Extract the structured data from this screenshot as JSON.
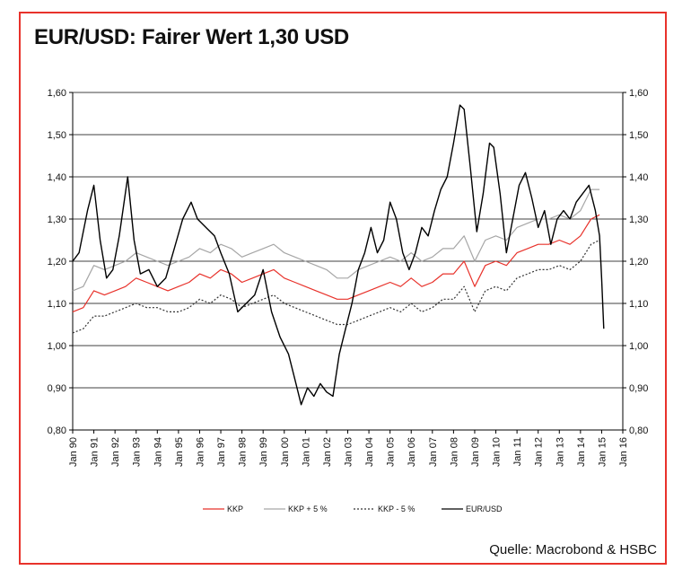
{
  "title": "EUR/USD: Fairer Wert 1,30 USD",
  "source": "Quelle: Macrobond & HSBC",
  "chart_data": {
    "type": "line",
    "ylim": [
      0.8,
      1.6
    ],
    "y_ticks": [
      "0,80",
      "0,90",
      "1,00",
      "1,10",
      "1,20",
      "1,30",
      "1,40",
      "1,50",
      "1,60"
    ],
    "y_tick_values": [
      0.8,
      0.9,
      1.0,
      1.1,
      1.2,
      1.3,
      1.4,
      1.5,
      1.6
    ],
    "xlim": [
      1990,
      2016
    ],
    "x_ticks": [
      "Jan 90",
      "Jan 91",
      "Jan 92",
      "Jan 93",
      "Jan 94",
      "Jan 95",
      "Jan 96",
      "Jan 97",
      "Jan 98",
      "Jan 99",
      "Jan 00",
      "Jan 01",
      "Jan 02",
      "Jan 03",
      "Jan 04",
      "Jan 05",
      "Jan 06",
      "Jan 07",
      "Jan 08",
      "Jan 09",
      "Jan 10",
      "Jan 11",
      "Jan 12",
      "Jan 13",
      "Jan 14",
      "Jan 15",
      "Jan 16"
    ],
    "x_tick_values": [
      1990,
      1991,
      1992,
      1993,
      1994,
      1995,
      1996,
      1997,
      1998,
      1999,
      2000,
      2001,
      2002,
      2003,
      2004,
      2005,
      2006,
      2007,
      2008,
      2009,
      2010,
      2011,
      2012,
      2013,
      2014,
      2015,
      2016
    ],
    "grid": true,
    "legend_position": "bottom",
    "series": [
      {
        "name": "KKP",
        "color": "#e8322b",
        "dash": "",
        "x": [
          1990,
          1990.5,
          1991,
          1991.5,
          1992,
          1992.5,
          1993,
          1993.5,
          1994,
          1994.5,
          1995,
          1995.5,
          1996,
          1996.5,
          1997,
          1997.5,
          1998,
          1998.5,
          1999,
          1999.5,
          2000,
          2000.5,
          2001,
          2001.5,
          2002,
          2002.5,
          2003,
          2003.5,
          2004,
          2004.5,
          2005,
          2005.5,
          2006,
          2006.5,
          2007,
          2007.5,
          2008,
          2008.5,
          2009,
          2009.5,
          2010,
          2010.5,
          2011,
          2011.5,
          2012,
          2012.5,
          2013,
          2013.5,
          2014,
          2014.5,
          2014.9
        ],
        "y": [
          1.08,
          1.09,
          1.13,
          1.12,
          1.13,
          1.14,
          1.16,
          1.15,
          1.14,
          1.13,
          1.14,
          1.15,
          1.17,
          1.16,
          1.18,
          1.17,
          1.15,
          1.16,
          1.17,
          1.18,
          1.16,
          1.15,
          1.14,
          1.13,
          1.12,
          1.11,
          1.11,
          1.12,
          1.13,
          1.14,
          1.15,
          1.14,
          1.16,
          1.14,
          1.15,
          1.17,
          1.17,
          1.2,
          1.14,
          1.19,
          1.2,
          1.19,
          1.22,
          1.23,
          1.24,
          1.24,
          1.25,
          1.24,
          1.26,
          1.3,
          1.31
        ]
      },
      {
        "name": "KKP + 5 %",
        "color": "#a6a6a6",
        "dash": "",
        "x": [
          1990,
          1990.5,
          1991,
          1991.5,
          1992,
          1992.5,
          1993,
          1993.5,
          1994,
          1994.5,
          1995,
          1995.5,
          1996,
          1996.5,
          1997,
          1997.5,
          1998,
          1998.5,
          1999,
          1999.5,
          2000,
          2000.5,
          2001,
          2001.5,
          2002,
          2002.5,
          2003,
          2003.5,
          2004,
          2004.5,
          2005,
          2005.5,
          2006,
          2006.5,
          2007,
          2007.5,
          2008,
          2008.5,
          2009,
          2009.5,
          2010,
          2010.5,
          2011,
          2011.5,
          2012,
          2012.5,
          2013,
          2013.5,
          2014,
          2014.5,
          2014.9
        ],
        "y": [
          1.13,
          1.14,
          1.19,
          1.18,
          1.19,
          1.2,
          1.22,
          1.21,
          1.2,
          1.19,
          1.2,
          1.21,
          1.23,
          1.22,
          1.24,
          1.23,
          1.21,
          1.22,
          1.23,
          1.24,
          1.22,
          1.21,
          1.2,
          1.19,
          1.18,
          1.16,
          1.16,
          1.18,
          1.19,
          1.2,
          1.21,
          1.2,
          1.22,
          1.2,
          1.21,
          1.23,
          1.23,
          1.26,
          1.2,
          1.25,
          1.26,
          1.25,
          1.28,
          1.29,
          1.3,
          1.3,
          1.31,
          1.3,
          1.32,
          1.37,
          1.37
        ]
      },
      {
        "name": "KKP - 5 %",
        "color": "#333333",
        "dash": "2,2",
        "x": [
          1990,
          1990.5,
          1991,
          1991.5,
          1992,
          1992.5,
          1993,
          1993.5,
          1994,
          1994.5,
          1995,
          1995.5,
          1996,
          1996.5,
          1997,
          1997.5,
          1998,
          1998.5,
          1999,
          1999.5,
          2000,
          2000.5,
          2001,
          2001.5,
          2002,
          2002.5,
          2003,
          2003.5,
          2004,
          2004.5,
          2005,
          2005.5,
          2006,
          2006.5,
          2007,
          2007.5,
          2008,
          2008.5,
          2009,
          2009.5,
          2010,
          2010.5,
          2011,
          2011.5,
          2012,
          2012.5,
          2013,
          2013.5,
          2014,
          2014.5,
          2014.9
        ],
        "y": [
          1.03,
          1.04,
          1.07,
          1.07,
          1.08,
          1.09,
          1.1,
          1.09,
          1.09,
          1.08,
          1.08,
          1.09,
          1.11,
          1.1,
          1.12,
          1.11,
          1.09,
          1.1,
          1.11,
          1.12,
          1.1,
          1.09,
          1.08,
          1.07,
          1.06,
          1.05,
          1.05,
          1.06,
          1.07,
          1.08,
          1.09,
          1.08,
          1.1,
          1.08,
          1.09,
          1.11,
          1.11,
          1.14,
          1.08,
          1.13,
          1.14,
          1.13,
          1.16,
          1.17,
          1.18,
          1.18,
          1.19,
          1.18,
          1.2,
          1.24,
          1.25
        ]
      },
      {
        "name": "EUR/USD",
        "color": "#000000",
        "dash": "",
        "x": [
          1990,
          1990.3,
          1990.7,
          1991.0,
          1991.3,
          1991.6,
          1991.9,
          1992.2,
          1992.6,
          1992.9,
          1993.2,
          1993.6,
          1994.0,
          1994.4,
          1994.8,
          1995.2,
          1995.6,
          1995.9,
          1996.3,
          1996.7,
          1997.0,
          1997.4,
          1997.8,
          1998.2,
          1998.6,
          1999.0,
          1999.4,
          1999.8,
          2000.2,
          2000.5,
          2000.8,
          2001.1,
          2001.4,
          2001.7,
          2002.0,
          2002.3,
          2002.6,
          2002.9,
          2003.2,
          2003.5,
          2003.8,
          2004.1,
          2004.4,
          2004.7,
          2005.0,
          2005.3,
          2005.6,
          2005.9,
          2006.2,
          2006.5,
          2006.8,
          2007.1,
          2007.4,
          2007.7,
          2008.0,
          2008.3,
          2008.5,
          2008.8,
          2009.1,
          2009.4,
          2009.7,
          2009.9,
          2010.2,
          2010.5,
          2010.8,
          2011.1,
          2011.4,
          2011.7,
          2012.0,
          2012.3,
          2012.6,
          2012.9,
          2013.2,
          2013.5,
          2013.8,
          2014.1,
          2014.4,
          2014.7,
          2014.9,
          2015.0,
          2015.1
        ],
        "y": [
          1.2,
          1.22,
          1.32,
          1.38,
          1.25,
          1.16,
          1.18,
          1.26,
          1.4,
          1.25,
          1.17,
          1.18,
          1.14,
          1.16,
          1.23,
          1.3,
          1.34,
          1.3,
          1.28,
          1.26,
          1.22,
          1.17,
          1.08,
          1.1,
          1.12,
          1.18,
          1.08,
          1.02,
          0.98,
          0.92,
          0.86,
          0.9,
          0.88,
          0.91,
          0.89,
          0.88,
          0.98,
          1.04,
          1.1,
          1.18,
          1.22,
          1.28,
          1.22,
          1.25,
          1.34,
          1.3,
          1.22,
          1.18,
          1.22,
          1.28,
          1.26,
          1.32,
          1.37,
          1.4,
          1.48,
          1.57,
          1.56,
          1.42,
          1.27,
          1.36,
          1.48,
          1.47,
          1.36,
          1.22,
          1.3,
          1.38,
          1.41,
          1.35,
          1.28,
          1.32,
          1.24,
          1.3,
          1.32,
          1.3,
          1.34,
          1.36,
          1.38,
          1.32,
          1.26,
          1.16,
          1.04
        ]
      }
    ]
  }
}
